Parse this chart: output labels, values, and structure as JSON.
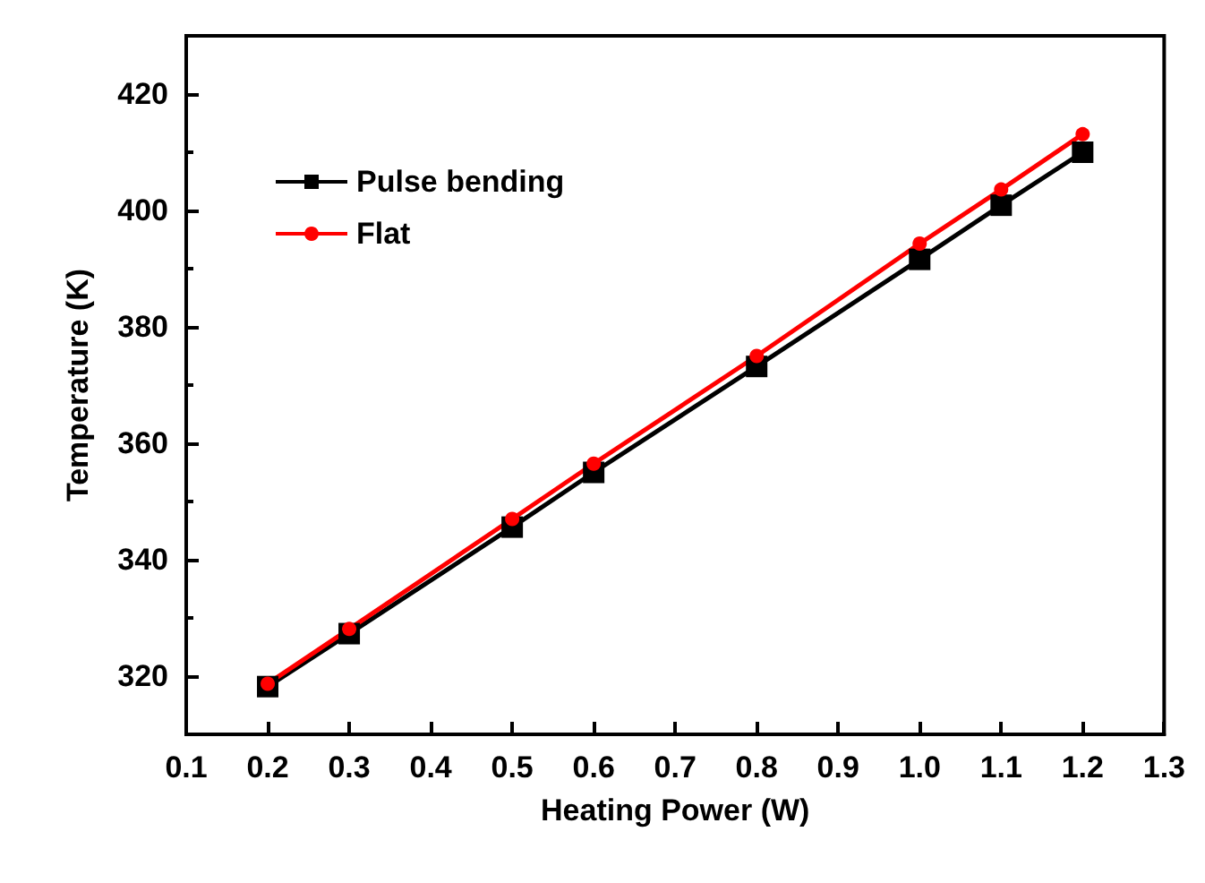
{
  "chart_data": {
    "type": "line",
    "xlabel": "Heating Power (W)",
    "ylabel": "Temperature (K)",
    "x": [
      0.2,
      0.3,
      0.5,
      0.6,
      0.8,
      1.0,
      1.1,
      1.2
    ],
    "series": [
      {
        "name": "Pulse bending",
        "color": "#000000",
        "marker": "square",
        "values": [
          318.2,
          327.3,
          345.6,
          355.0,
          373.2,
          391.6,
          400.9,
          410.0
        ]
      },
      {
        "name": "Flat",
        "color": "#ff0000",
        "marker": "circle",
        "values": [
          318.7,
          328.1,
          347.0,
          356.5,
          375.0,
          394.3,
          403.6,
          413.1
        ]
      }
    ],
    "xlim": [
      0.1,
      1.3
    ],
    "xticks": [
      {
        "value": 0.1,
        "label": "0.1"
      },
      {
        "value": 0.2,
        "label": "0.2"
      },
      {
        "value": 0.3,
        "label": "0.3"
      },
      {
        "value": 0.4,
        "label": "0.4"
      },
      {
        "value": 0.5,
        "label": "0.5"
      },
      {
        "value": 0.6,
        "label": "0.6"
      },
      {
        "value": 0.7,
        "label": "0.7"
      },
      {
        "value": 0.8,
        "label": "0.8"
      },
      {
        "value": 0.9,
        "label": "0.9"
      },
      {
        "value": 1.0,
        "label": "1.0"
      },
      {
        "value": 1.1,
        "label": "1.1"
      },
      {
        "value": 1.2,
        "label": "1.2"
      },
      {
        "value": 1.3,
        "label": "1.3"
      }
    ],
    "ylim": [
      310,
      430
    ],
    "yticks": [
      320,
      340,
      360,
      380,
      400,
      420
    ],
    "grid": false,
    "legend": "top left",
    "line_style": "solid"
  }
}
